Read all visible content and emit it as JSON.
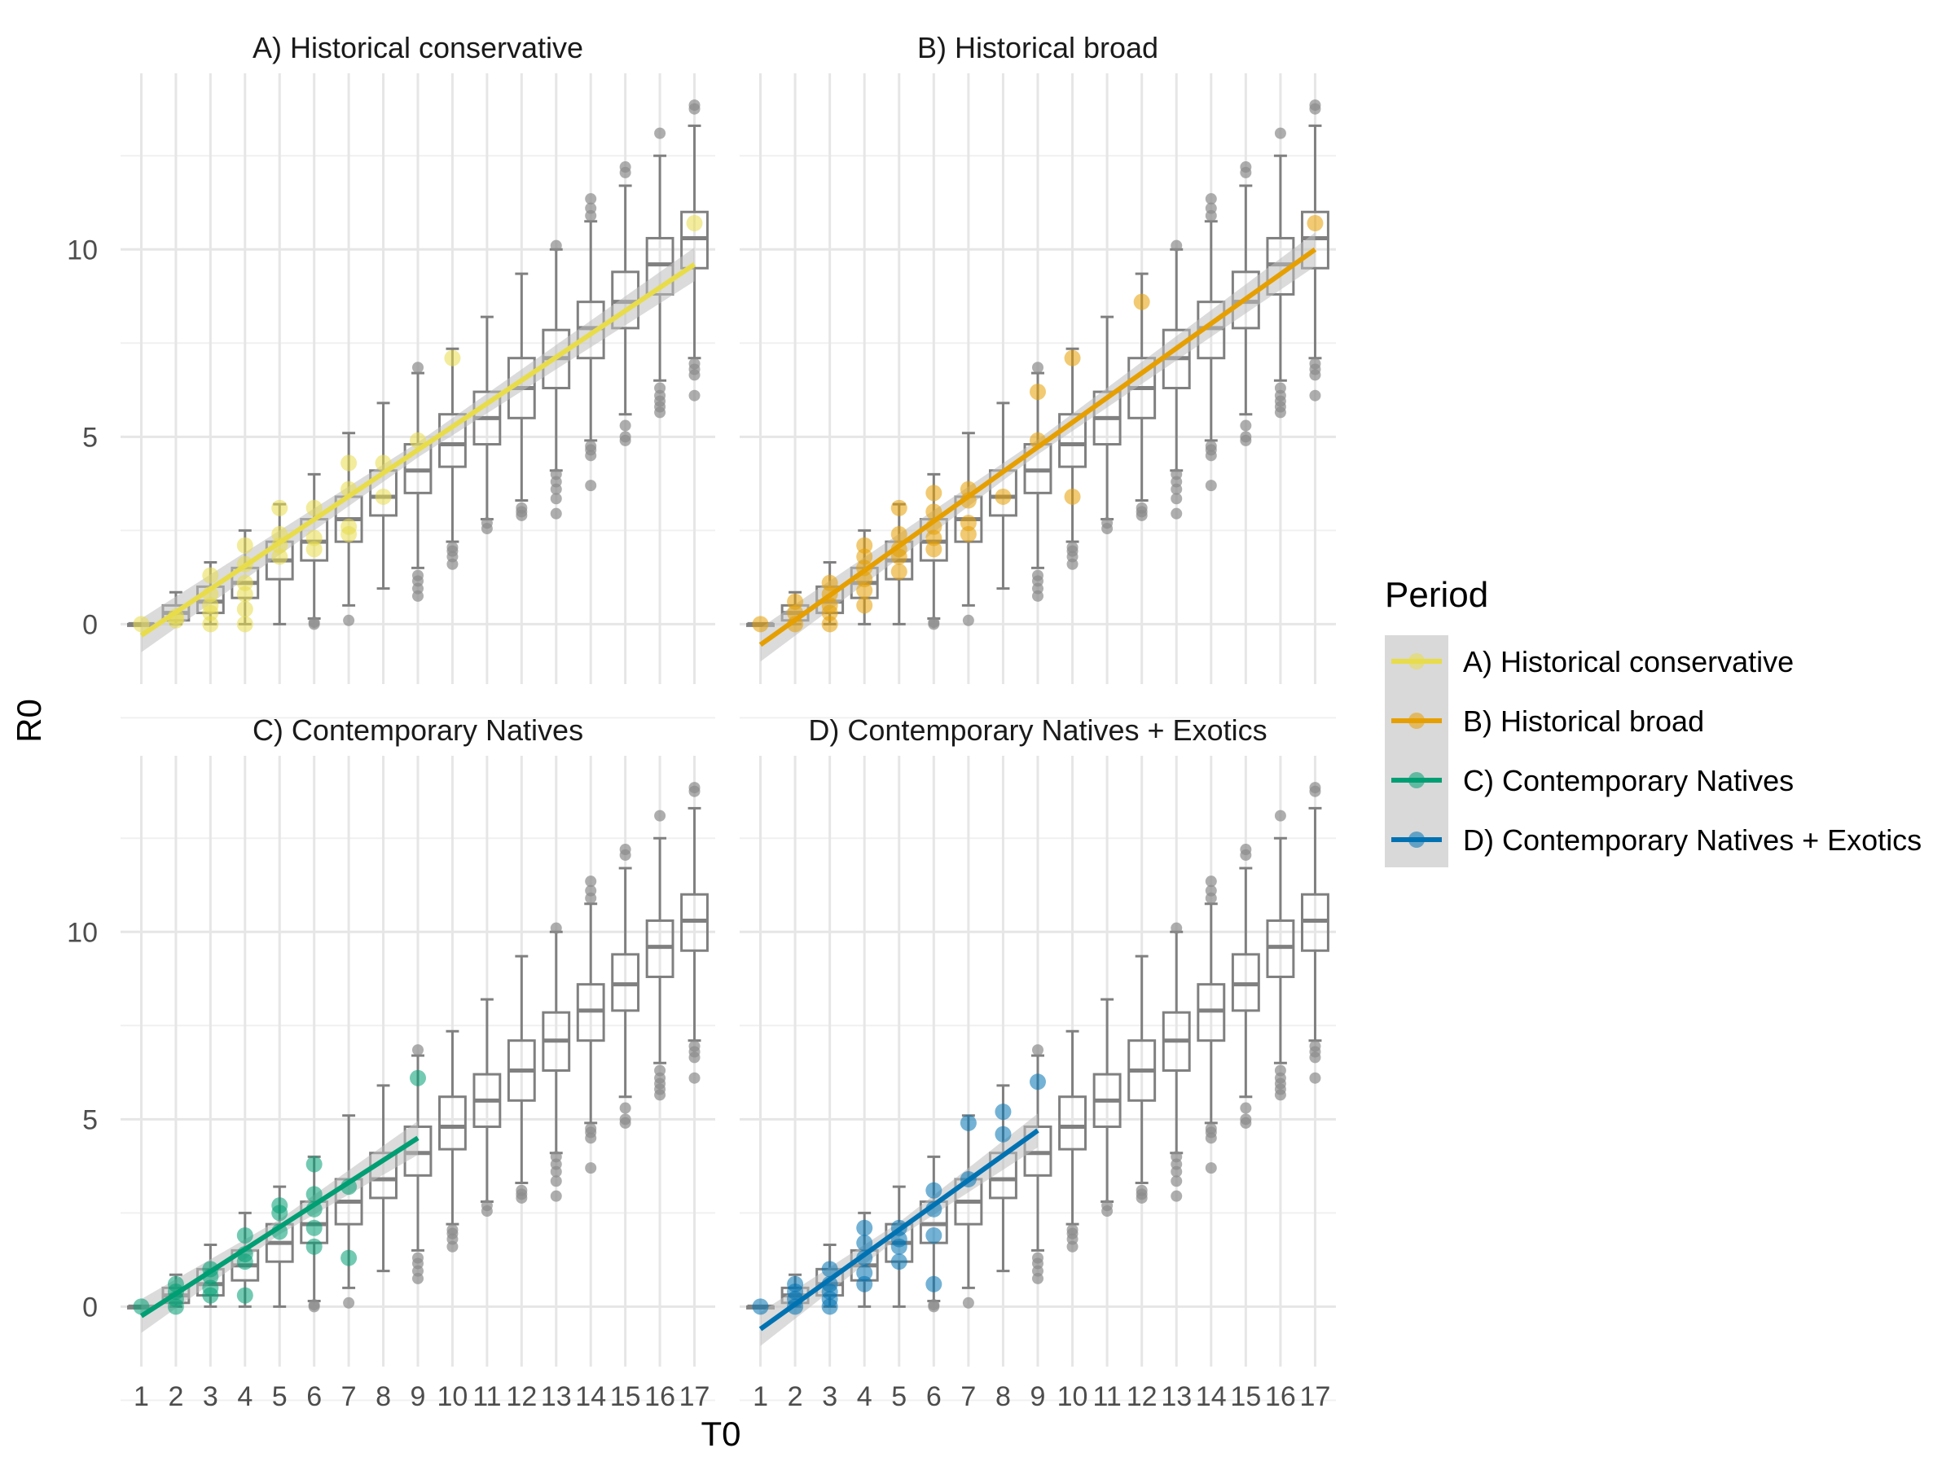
{
  "chart_data": {
    "type": "scatter",
    "xlabel": "T0",
    "ylabel": "R0",
    "x_categories": [
      "1",
      "2",
      "3",
      "4",
      "5",
      "6",
      "7",
      "8",
      "9",
      "10",
      "11",
      "12",
      "13",
      "14",
      "15",
      "16",
      "17"
    ],
    "y_ticks": [
      0,
      5,
      10
    ],
    "ylim": [
      -1.6,
      14.7
    ],
    "grid": true,
    "legend": {
      "title": "Period",
      "position": "right",
      "entries": [
        {
          "label": "A) Historical conservative",
          "color": "#E8DC4A"
        },
        {
          "label": "B) Historical broad",
          "color": "#E69F00"
        },
        {
          "label": "C) Contemporary Natives",
          "color": "#009E73"
        },
        {
          "label": "D) Contemporary Natives + Exotics",
          "color": "#0072B2"
        }
      ]
    },
    "box_color": "#808080",
    "band_color": "#BEBEBE",
    "boxplots": [
      {
        "x": 1,
        "q1": 0,
        "median": 0,
        "q3": 0,
        "lo": 0,
        "hi": 0,
        "outliers": []
      },
      {
        "x": 2,
        "q1": 0.1,
        "median": 0.3,
        "q3": 0.5,
        "lo": 0,
        "hi": 0.85,
        "outliers": []
      },
      {
        "x": 3,
        "q1": 0.3,
        "median": 0.6,
        "q3": 1.0,
        "lo": 0,
        "hi": 1.65,
        "outliers": []
      },
      {
        "x": 4,
        "q1": 0.7,
        "median": 1.1,
        "q3": 1.5,
        "lo": 0,
        "hi": 2.5,
        "outliers": []
      },
      {
        "x": 5,
        "q1": 1.2,
        "median": 1.7,
        "q3": 2.2,
        "lo": 0,
        "hi": 3.2,
        "outliers": []
      },
      {
        "x": 6,
        "q1": 1.7,
        "median": 2.2,
        "q3": 2.8,
        "lo": 0.15,
        "hi": 4.0,
        "outliers": [
          0.0,
          0.05
        ]
      },
      {
        "x": 7,
        "q1": 2.2,
        "median": 2.8,
        "q3": 3.4,
        "lo": 0.5,
        "hi": 5.1,
        "outliers": [
          0.1
        ]
      },
      {
        "x": 8,
        "q1": 2.9,
        "median": 3.4,
        "q3": 4.1,
        "lo": 0.95,
        "hi": 5.9,
        "outliers": []
      },
      {
        "x": 9,
        "q1": 3.5,
        "median": 4.1,
        "q3": 4.8,
        "lo": 1.5,
        "hi": 6.7,
        "outliers": [
          0.75,
          0.95,
          1.15,
          1.3,
          6.85
        ]
      },
      {
        "x": 10,
        "q1": 4.2,
        "median": 4.8,
        "q3": 5.6,
        "lo": 2.2,
        "hi": 7.35,
        "outliers": [
          1.6,
          1.8,
          1.95,
          2.05
        ]
      },
      {
        "x": 11,
        "q1": 4.8,
        "median": 5.5,
        "q3": 6.2,
        "lo": 2.8,
        "hi": 8.2,
        "outliers": [
          2.55,
          2.7
        ]
      },
      {
        "x": 12,
        "q1": 5.5,
        "median": 6.3,
        "q3": 7.1,
        "lo": 3.3,
        "hi": 9.35,
        "outliers": [
          2.9,
          3.0,
          3.1
        ]
      },
      {
        "x": 13,
        "q1": 6.3,
        "median": 7.1,
        "q3": 7.85,
        "lo": 4.1,
        "hi": 10.0,
        "outliers": [
          2.95,
          3.35,
          3.6,
          3.8,
          4.0,
          10.1
        ]
      },
      {
        "x": 14,
        "q1": 7.1,
        "median": 7.9,
        "q3": 8.6,
        "lo": 4.9,
        "hi": 10.75,
        "outliers": [
          3.7,
          4.5,
          4.65,
          4.75,
          10.9,
          11.1,
          11.35
        ]
      },
      {
        "x": 15,
        "q1": 7.9,
        "median": 8.6,
        "q3": 9.4,
        "lo": 5.6,
        "hi": 11.7,
        "outliers": [
          4.9,
          5.0,
          5.3,
          12.05,
          12.2
        ]
      },
      {
        "x": 16,
        "q1": 8.8,
        "median": 9.6,
        "q3": 10.3,
        "lo": 6.5,
        "hi": 12.5,
        "outliers": [
          5.65,
          5.8,
          5.95,
          6.1,
          6.3,
          13.1
        ]
      },
      {
        "x": 17,
        "q1": 9.5,
        "median": 10.3,
        "q3": 11.0,
        "lo": 7.1,
        "hi": 13.3,
        "outliers": [
          6.1,
          6.65,
          6.8,
          6.95,
          13.75,
          13.85
        ]
      }
    ],
    "panels": [
      {
        "title": "A) Historical conservative",
        "color": "#E8DC4A",
        "fit": {
          "x_start": 1,
          "x_end": 17,
          "y_start": -0.3,
          "y_end": 9.6
        },
        "points": [
          [
            1,
            0
          ],
          [
            2,
            0.1
          ],
          [
            2,
            0.2
          ],
          [
            3,
            0
          ],
          [
            3,
            0.3
          ],
          [
            3,
            0.5
          ],
          [
            3,
            0.8
          ],
          [
            3,
            1.3
          ],
          [
            4,
            0
          ],
          [
            4,
            0.4
          ],
          [
            4,
            0.8
          ],
          [
            4,
            1.1
          ],
          [
            4,
            1.6
          ],
          [
            4,
            2.1
          ],
          [
            5,
            1.8
          ],
          [
            5,
            2.1
          ],
          [
            5,
            2.4
          ],
          [
            5,
            3.1
          ],
          [
            6,
            2.0
          ],
          [
            6,
            2.3
          ],
          [
            6,
            3.1
          ],
          [
            7,
            2.4
          ],
          [
            7,
            2.6
          ],
          [
            7,
            3.6
          ],
          [
            7,
            4.3
          ],
          [
            8,
            3.4
          ],
          [
            8,
            4.3
          ],
          [
            9,
            4.9
          ],
          [
            10,
            7.1
          ],
          [
            17,
            10.7
          ]
        ]
      },
      {
        "title": "B) Historical broad",
        "color": "#E69F00",
        "fit": {
          "x_start": 1,
          "x_end": 17,
          "y_start": -0.55,
          "y_end": 10.0
        },
        "points": [
          [
            1,
            0
          ],
          [
            2,
            0
          ],
          [
            2,
            0.3
          ],
          [
            2,
            0.6
          ],
          [
            3,
            0
          ],
          [
            3,
            0.3
          ],
          [
            3,
            0.5
          ],
          [
            3,
            0.8
          ],
          [
            3,
            1.1
          ],
          [
            4,
            0.5
          ],
          [
            4,
            0.9
          ],
          [
            4,
            1.2
          ],
          [
            4,
            1.5
          ],
          [
            4,
            1.8
          ],
          [
            4,
            2.1
          ],
          [
            5,
            1.4
          ],
          [
            5,
            1.8
          ],
          [
            5,
            2.0
          ],
          [
            5,
            2.4
          ],
          [
            5,
            3.1
          ],
          [
            6,
            2.0
          ],
          [
            6,
            2.3
          ],
          [
            6,
            2.6
          ],
          [
            6,
            3.0
          ],
          [
            6,
            3.5
          ],
          [
            7,
            2.4
          ],
          [
            7,
            2.7
          ],
          [
            7,
            3.3
          ],
          [
            7,
            3.6
          ],
          [
            8,
            3.4
          ],
          [
            9,
            4.9
          ],
          [
            9,
            6.2
          ],
          [
            10,
            3.4
          ],
          [
            10,
            7.1
          ],
          [
            12,
            8.6
          ],
          [
            17,
            10.7
          ]
        ]
      },
      {
        "title": "C) Contemporary Natives",
        "color": "#009E73",
        "fit": {
          "x_start": 1,
          "x_end": 9,
          "y_start": -0.25,
          "y_end": 4.5
        },
        "points": [
          [
            1,
            0
          ],
          [
            2,
            0
          ],
          [
            2,
            0.2
          ],
          [
            2,
            0.4
          ],
          [
            2,
            0.6
          ],
          [
            3,
            0.3
          ],
          [
            3,
            0.5
          ],
          [
            3,
            0.8
          ],
          [
            3,
            1.0
          ],
          [
            4,
            0.3
          ],
          [
            4,
            1.2
          ],
          [
            4,
            1.4
          ],
          [
            4,
            1.9
          ],
          [
            5,
            2.0
          ],
          [
            5,
            2.5
          ],
          [
            5,
            2.7
          ],
          [
            6,
            1.6
          ],
          [
            6,
            2.1
          ],
          [
            6,
            2.6
          ],
          [
            6,
            3.0
          ],
          [
            6,
            3.8
          ],
          [
            7,
            1.3
          ],
          [
            7,
            3.2
          ],
          [
            9,
            6.1
          ]
        ]
      },
      {
        "title": "D) Contemporary Natives + Exotics",
        "color": "#0072B2",
        "fit": {
          "x_start": 1,
          "x_end": 9,
          "y_start": -0.6,
          "y_end": 4.7
        },
        "points": [
          [
            1,
            0
          ],
          [
            2,
            0
          ],
          [
            2,
            0.2
          ],
          [
            2,
            0.4
          ],
          [
            2,
            0.6
          ],
          [
            3,
            0
          ],
          [
            3,
            0.2
          ],
          [
            3,
            0.4
          ],
          [
            3,
            0.6
          ],
          [
            3,
            1.0
          ],
          [
            4,
            0.6
          ],
          [
            4,
            0.9
          ],
          [
            4,
            1.3
          ],
          [
            4,
            1.7
          ],
          [
            4,
            2.1
          ],
          [
            5,
            1.2
          ],
          [
            5,
            1.6
          ],
          [
            5,
            1.8
          ],
          [
            5,
            2.1
          ],
          [
            6,
            0.6
          ],
          [
            6,
            1.9
          ],
          [
            6,
            2.6
          ],
          [
            6,
            3.1
          ],
          [
            7,
            3.4
          ],
          [
            7,
            4.9
          ],
          [
            8,
            4.6
          ],
          [
            8,
            5.2
          ],
          [
            9,
            6.0
          ]
        ]
      }
    ]
  }
}
